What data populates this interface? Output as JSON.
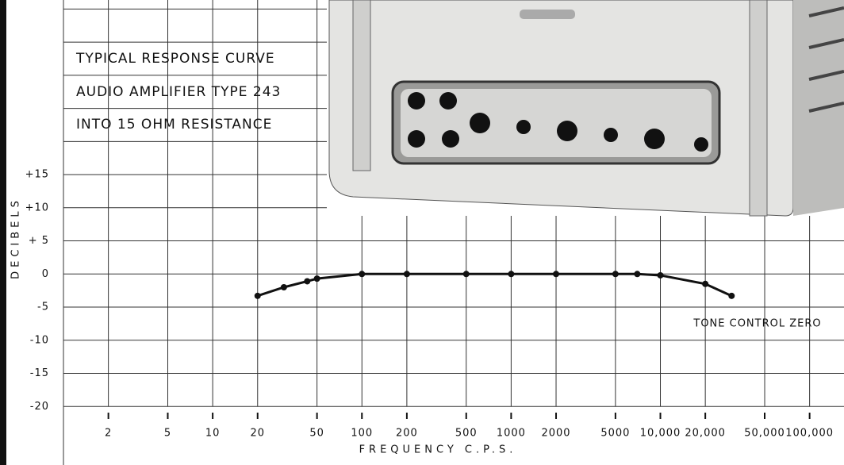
{
  "chart_data": {
    "type": "line",
    "title_lines": [
      "TYPICAL RESPONSE CURVE",
      "AUDIO AMPLIFIER TYPE 243",
      "INTO 15 OHM RESISTANCE"
    ],
    "y_label": "DECIBELS",
    "x_label": "FREQUENCY   C.P.S.",
    "annotation": "TONE CONTROL ZERO",
    "log_x": true,
    "grid": true,
    "color": "#111111",
    "xlim": [
      1,
      170000
    ],
    "ylim": [
      -25,
      41
    ],
    "xticks": [
      2,
      5,
      10,
      20,
      50,
      100,
      200,
      500,
      1000,
      2000,
      5000,
      {
        "value": 10000,
        "label": "10,000"
      },
      {
        "value": 20000,
        "label": "20,000"
      },
      {
        "value": 50000,
        "label": "50,000"
      },
      {
        "value": 100000,
        "label": "100,000"
      }
    ],
    "yticks": [
      {
        "value": 15,
        "label": "+15"
      },
      {
        "value": 10,
        "label": "+10"
      },
      {
        "value": 5,
        "label": "+ 5"
      },
      0,
      -5,
      -10,
      -15,
      -20
    ],
    "ygrid": [
      20,
      25,
      30,
      35,
      40
    ],
    "x": [
      20,
      30,
      43,
      50,
      100,
      200,
      500,
      1000,
      2000,
      5000,
      7000,
      10000,
      20000,
      30000
    ],
    "values": [
      -3.3,
      -2,
      -1.1,
      -0.7,
      0,
      0,
      0,
      0,
      0,
      0,
      0,
      -0.2,
      -1.5,
      -3.3
    ]
  }
}
